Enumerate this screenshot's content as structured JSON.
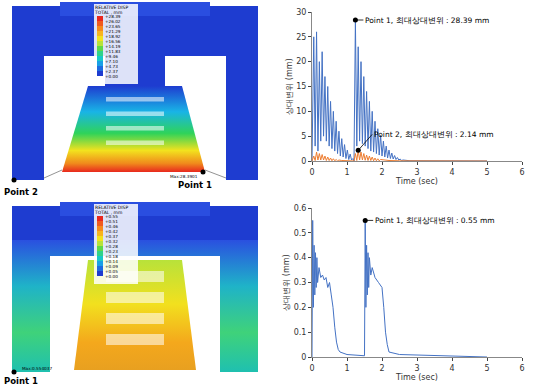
{
  "chart_data": [
    {
      "type": "line",
      "x_label": "Time (sec)",
      "y_label": "상대변위 (mm)",
      "xlim": [
        0,
        6
      ],
      "xticks": [
        0,
        1,
        2,
        3,
        4,
        5,
        6
      ],
      "ylim": [
        0,
        30
      ],
      "yticks": [
        0,
        5,
        10,
        15,
        20,
        25,
        30
      ],
      "grid": false,
      "series": [
        {
          "color": "#4472c4",
          "x": [
            0,
            0.05,
            0.09,
            0.13,
            0.17,
            0.21,
            0.25,
            0.29,
            0.33,
            0.37,
            0.41,
            0.45,
            0.49,
            0.53,
            0.57,
            0.61,
            0.65,
            0.69,
            0.73,
            0.77,
            0.81,
            0.85,
            0.89,
            0.93,
            0.97,
            1.01,
            1.05,
            1.09,
            1.13,
            1.17,
            1.2,
            1.24,
            1.28,
            1.32,
            1.36,
            1.4,
            1.44,
            1.48,
            1.52,
            1.56,
            1.6,
            1.64,
            1.68,
            1.72,
            1.76,
            1.8,
            1.84,
            1.88,
            1.92,
            1.96,
            2,
            2.04,
            2.08,
            2.12,
            2.16,
            2.2,
            2.24,
            2.28,
            2.32,
            2.36,
            2.4,
            2.44,
            2.48,
            2.52,
            2.56,
            2.6,
            2.8,
            3.5,
            5
          ],
          "values": [
            0,
            25,
            3,
            26,
            2,
            20,
            4,
            22,
            5,
            17,
            4,
            15,
            3,
            12,
            2.5,
            10,
            2,
            8,
            1.5,
            6,
            1,
            4.5,
            0.8,
            3.3,
            0.5,
            2.2,
            0.3,
            1.4,
            0.2,
            0.5,
            0,
            28.39,
            3,
            23,
            4,
            20,
            3.5,
            17,
            3,
            14,
            2.5,
            12,
            2,
            10,
            1.8,
            8,
            1.5,
            6.5,
            1.2,
            5.2,
            1,
            4,
            0.8,
            3,
            0.6,
            2.2,
            0.5,
            1.6,
            0.4,
            1.1,
            0.3,
            0.7,
            0.2,
            0.4,
            0.1,
            0.2,
            0.05,
            0.02,
            0
          ]
        },
        {
          "color": "#ed7d31",
          "x": [
            0,
            0.05,
            0.09,
            0.13,
            0.17,
            0.21,
            0.25,
            0.29,
            0.33,
            0.37,
            0.41,
            0.45,
            0.49,
            0.53,
            0.57,
            0.61,
            0.65,
            0.69,
            0.73,
            0.77,
            0.85,
            1,
            1.2,
            1.24,
            1.28,
            1.32,
            1.36,
            1.4,
            1.44,
            1.48,
            1.52,
            1.56,
            1.6,
            1.64,
            1.68,
            1.72,
            1.76,
            1.8,
            1.84,
            1.88,
            1.92,
            1.96,
            2.04,
            2.2,
            2.5,
            3,
            5
          ],
          "values": [
            0,
            1,
            0.1,
            1.8,
            0.2,
            1.5,
            0.2,
            1.3,
            0.2,
            1,
            0.1,
            0.8,
            0.1,
            0.6,
            0.05,
            0.45,
            0.05,
            0.3,
            0.03,
            0.2,
            0.1,
            0.05,
            0,
            1.5,
            0.1,
            2.14,
            0.2,
            1.8,
            0.2,
            1.5,
            0.15,
            1.2,
            0.1,
            1,
            0.1,
            0.8,
            0.05,
            0.6,
            0.05,
            0.45,
            0.03,
            0.3,
            0.2,
            0.1,
            0.04,
            0.01,
            0
          ]
        }
      ],
      "annotations": [
        {
          "text": "Point 1, 최대상대변위 : 28.39 mm",
          "x": 1.24,
          "y": 28.39
        },
        {
          "text": "Point 2, 최대상대변위 : 2.14 mm",
          "x": 1.32,
          "y": 2.14
        }
      ]
    },
    {
      "type": "line",
      "x_label": "Time (sec)",
      "y_label": "상대변위 (mm)",
      "xlim": [
        0,
        6
      ],
      "xticks": [
        0,
        1,
        2,
        3,
        4,
        5,
        6
      ],
      "ylim": [
        0,
        0.6
      ],
      "yticks": [
        0,
        0.1,
        0.2,
        0.3,
        0.4,
        0.5,
        0.6
      ],
      "grid": false,
      "series": [
        {
          "color": "#4472c4",
          "x": [
            0,
            0.02,
            0.04,
            0.06,
            0.08,
            0.1,
            0.12,
            0.14,
            0.16,
            0.2,
            0.25,
            0.3,
            0.35,
            0.4,
            0.45,
            0.5,
            0.55,
            0.6,
            0.65,
            0.7,
            0.75,
            0.8,
            1,
            1.5,
            1.52,
            1.54,
            1.56,
            1.58,
            1.6,
            1.62,
            1.64,
            1.68,
            1.72,
            1.8,
            1.9,
            2,
            2.05,
            2.1,
            2.15,
            2.2,
            2.5,
            5
          ],
          "values": [
            0,
            0.55,
            0.2,
            0.45,
            0.25,
            0.42,
            0.28,
            0.4,
            0.3,
            0.36,
            0.32,
            0.33,
            0.31,
            0.32,
            0.28,
            0.3,
            0.25,
            0.2,
            0.12,
            0.06,
            0.03,
            0.02,
            0.01,
            0.005,
            0.55,
            0.2,
            0.45,
            0.25,
            0.42,
            0.28,
            0.4,
            0.33,
            0.36,
            0.32,
            0.3,
            0.28,
            0.2,
            0.1,
            0.05,
            0.02,
            0.01,
            0
          ]
        }
      ],
      "annotations": [
        {
          "text": "Point 1, 최대상대변위 : 0.55 mm",
          "x": 1.52,
          "y": 0.55
        }
      ]
    }
  ],
  "contour_plots": [
    {
      "colorbar_title": [
        "RELATIVE DISP",
        "TOTAL , mm"
      ],
      "colorbar_labels": [
        "+28.39",
        "+26.02",
        "+23.65",
        "+21.29",
        "+18.92",
        "+16.56",
        "+14.19",
        "+11.83",
        "+9.46",
        "+7.10",
        "+4.73",
        "+2.37",
        "+0.00"
      ],
      "max_label": "Max:28.3901",
      "points": [
        "Point 2",
        "Point 1"
      ]
    },
    {
      "colorbar_title": [
        "RELATIVE DISP",
        "TOTAL , mm"
      ],
      "colorbar_labels": [
        "+0.55",
        "+0.51",
        "+0.46",
        "+0.42",
        "+0.37",
        "+0.32",
        "+0.28",
        "+0.23",
        "+0.18",
        "+0.14",
        "+0.09",
        "+0.05",
        "+0.00"
      ],
      "max_label": "Max:0.554037",
      "points": [
        "Point 1"
      ]
    }
  ]
}
